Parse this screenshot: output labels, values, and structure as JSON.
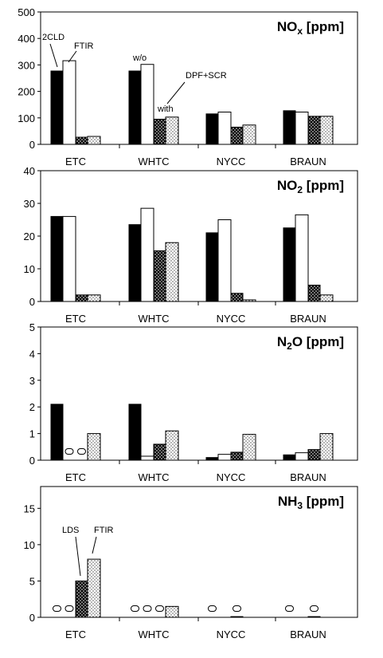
{
  "chart_data": [
    {
      "type": "bar",
      "title": "NOx [ppm]",
      "title_parts": {
        "main": "NO",
        "sub": "x",
        "unit": " [ppm]"
      },
      "categories": [
        "ETC",
        "WHTC",
        "NYCC",
        "BRAUN"
      ],
      "ylim": [
        0,
        500
      ],
      "yticks": [
        "0",
        "100",
        "200",
        "300",
        "400",
        "500"
      ],
      "series": [
        {
          "values": [
            277,
            277,
            115,
            127
          ]
        },
        {
          "values": [
            316,
            302,
            122,
            122
          ]
        },
        {
          "values": [
            27,
            95,
            65,
            106
          ]
        },
        {
          "values": [
            30,
            103,
            73,
            106
          ]
        }
      ],
      "annotations": [
        "2CLD",
        "FTIR",
        "w/o",
        "with",
        "DPF+SCR"
      ]
    },
    {
      "type": "bar",
      "title": "NO2 [ppm]",
      "title_parts": {
        "main": "NO",
        "sub": "2",
        "unit": " [ppm]"
      },
      "categories": [
        "ETC",
        "WHTC",
        "NYCC",
        "BRAUN"
      ],
      "ylim": [
        0,
        40
      ],
      "yticks": [
        "0",
        "10",
        "20",
        "30",
        "40"
      ],
      "series": [
        {
          "values": [
            26,
            23.5,
            21,
            22.5
          ]
        },
        {
          "values": [
            26,
            28.5,
            25,
            26.5
          ]
        },
        {
          "values": [
            2,
            15.5,
            2.5,
            5
          ]
        },
        {
          "values": [
            2,
            18,
            0.5,
            2
          ]
        }
      ],
      "annotations": []
    },
    {
      "type": "bar",
      "title": "N2O [ppm]",
      "title_parts": {
        "main": "N",
        "sub": "2",
        "unit": "O [ppm]"
      },
      "categories": [
        "ETC",
        "WHTC",
        "NYCC",
        "BRAUN"
      ],
      "ylim": [
        0,
        5
      ],
      "yticks": [
        "0",
        "1",
        "2",
        "3",
        "4",
        "5"
      ],
      "series": [
        {
          "values": [
            2.1,
            2.1,
            0.1,
            0.2
          ]
        },
        {
          "values": [
            0,
            0.15,
            0.22,
            0.28
          ]
        },
        {
          "values": [
            0,
            0.6,
            0.3,
            0.4
          ]
        },
        {
          "values": [
            1.0,
            1.1,
            0.97,
            1.0
          ]
        }
      ],
      "zero_markers": [
        {
          "category": "ETC",
          "series": 1
        },
        {
          "category": "ETC",
          "series": 2
        }
      ],
      "marker_text": "0",
      "annotations": []
    },
    {
      "type": "bar",
      "title": "NH3 [ppm]",
      "title_parts": {
        "main": "NH",
        "sub": "3",
        "unit": " [ppm]"
      },
      "categories": [
        "ETC",
        "WHTC",
        "NYCC",
        "BRAUN"
      ],
      "ylim": [
        0,
        18
      ],
      "yticks": [
        "0",
        "5",
        "10",
        "15"
      ],
      "series": [
        {
          "values": [
            0,
            0,
            0,
            0
          ]
        },
        {
          "values": [
            0,
            0,
            0,
            0
          ]
        },
        {
          "values": [
            5,
            0,
            0.1,
            0.1
          ]
        },
        {
          "values": [
            8,
            1.5,
            0,
            0
          ]
        }
      ],
      "zero_markers": [
        {
          "category": "ETC",
          "series": 0
        },
        {
          "category": "ETC",
          "series": 1
        },
        {
          "category": "WHTC",
          "series": 0
        },
        {
          "category": "WHTC",
          "series": 1
        },
        {
          "category": "WHTC",
          "series": 2
        },
        {
          "category": "NYCC",
          "series": 0
        },
        {
          "category": "NYCC",
          "series": 2
        },
        {
          "category": "BRAUN",
          "series": 0
        },
        {
          "category": "BRAUN",
          "series": 2
        }
      ],
      "marker_text": "0",
      "annotations": [
        "LDS",
        "FTIR"
      ]
    }
  ],
  "colors": {
    "series_fill": [
      "#000000",
      "#ffffff",
      "dots-dark",
      "dots-light"
    ],
    "stroke": "#000000"
  }
}
